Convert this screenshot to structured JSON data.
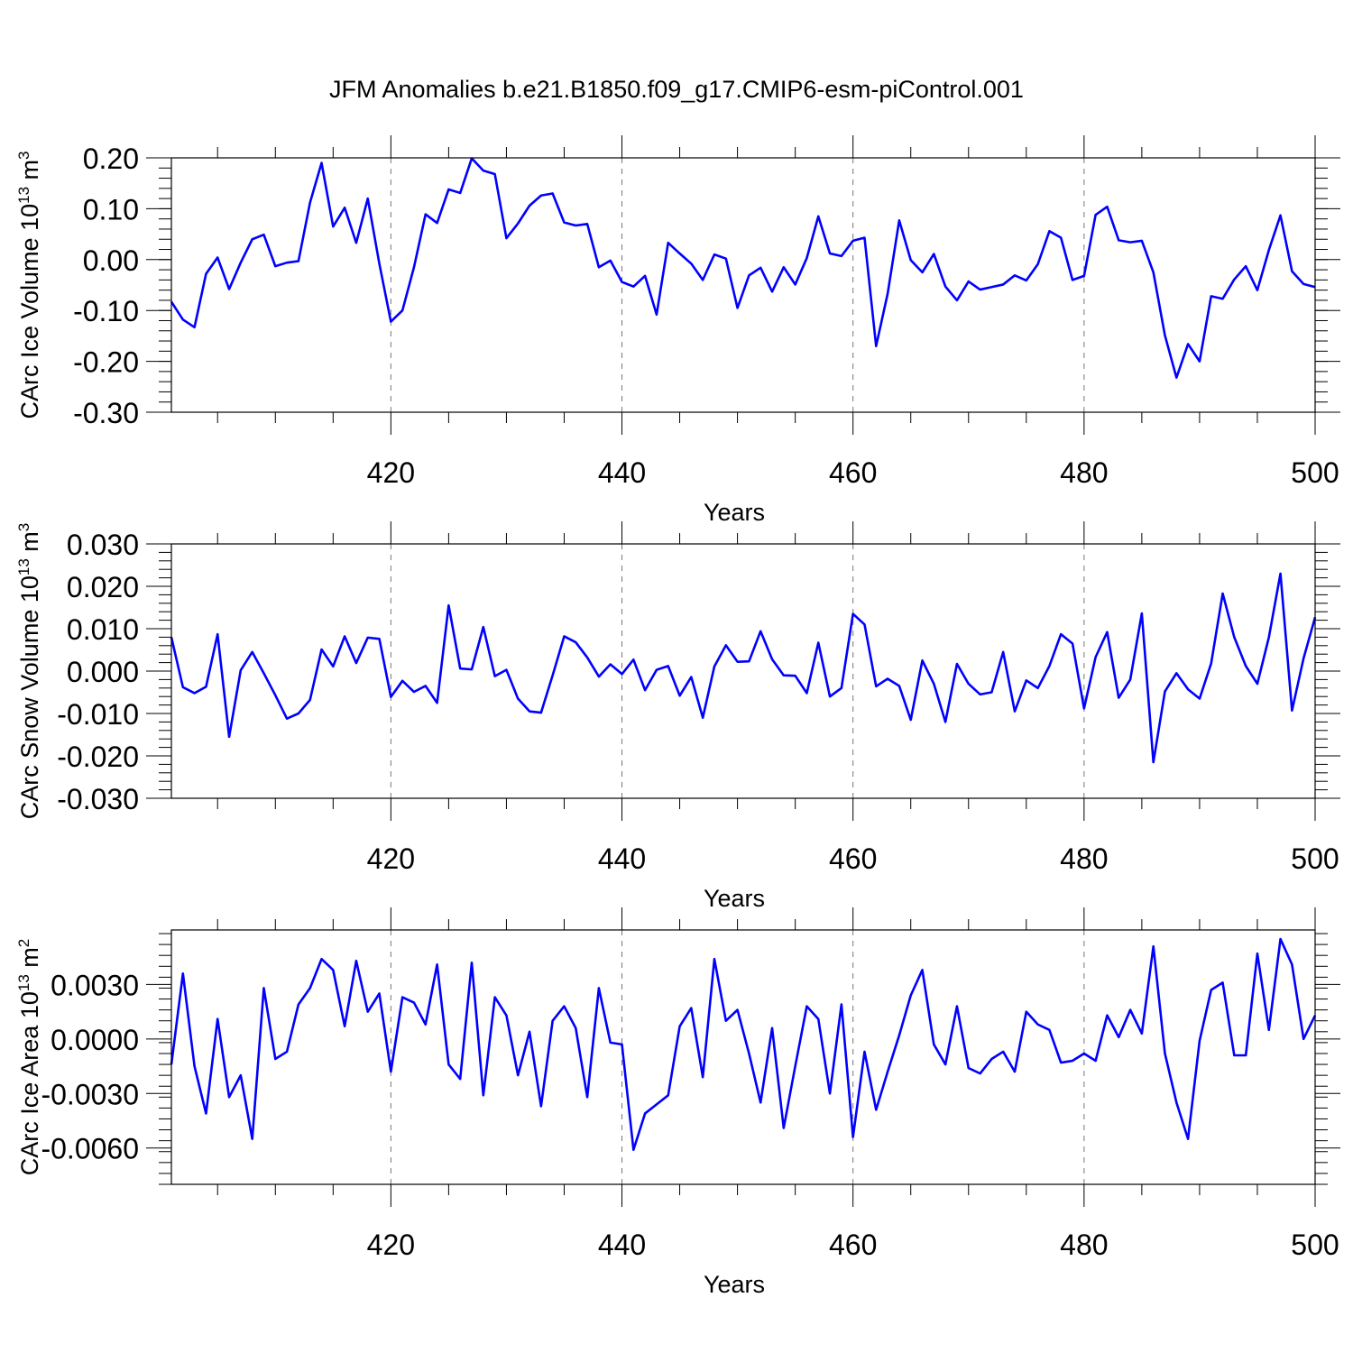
{
  "title": "JFM Anomalies b.e21.B1850.f09_g17.CMIP6-esm-piControl.001",
  "colors": {
    "line": "#0000ff",
    "axis": "#000000",
    "grid": "#777777"
  },
  "chart_data": [
    {
      "type": "line",
      "ylabel": "CArc Ice Volume 10",
      "ylabel_sup": "13",
      "ylabel_unit": " m",
      "ylabel_unit_sup": "3",
      "xlabel": "Years",
      "xlim": [
        401,
        500
      ],
      "ylim": [
        -0.3,
        0.2
      ],
      "xticks": [
        420,
        440,
        460,
        480,
        500
      ],
      "xtick_labels": [
        "420",
        "440",
        "460",
        "480",
        "500"
      ],
      "yticks": [
        0.2,
        0.1,
        0.0,
        -0.1,
        -0.2,
        -0.3
      ],
      "ytick_labels": [
        "0.20",
        "0.10",
        "0.00",
        "-0.10",
        "-0.20",
        "-0.30"
      ],
      "y_minor_step": 0.02,
      "grid_x": [
        420,
        440,
        460,
        480
      ],
      "x": [
        401,
        402,
        403,
        404,
        405,
        406,
        407,
        408,
        409,
        410,
        411,
        412,
        413,
        414,
        415,
        416,
        417,
        418,
        419,
        420,
        421,
        422,
        423,
        424,
        425,
        426,
        427,
        428,
        429,
        430,
        431,
        432,
        433,
        434,
        435,
        436,
        437,
        438,
        439,
        440,
        441,
        442,
        443,
        444,
        445,
        446,
        447,
        448,
        449,
        450,
        451,
        452,
        453,
        454,
        455,
        456,
        457,
        458,
        459,
        460,
        461,
        462,
        463,
        464,
        465,
        466,
        467,
        468,
        469,
        470,
        471,
        472,
        473,
        474,
        475,
        476,
        477,
        478,
        479,
        480,
        481,
        482,
        483,
        484,
        485,
        486,
        487,
        488,
        489,
        490,
        491,
        492,
        493,
        494,
        495,
        496,
        497,
        498,
        499,
        500
      ],
      "values": [
        -0.083,
        -0.118,
        -0.133,
        -0.028,
        0.004,
        -0.058,
        -0.006,
        0.04,
        0.049,
        -0.013,
        -0.006,
        -0.003,
        0.112,
        0.19,
        0.065,
        0.102,
        0.033,
        0.12,
        -0.008,
        -0.122,
        -0.1,
        -0.015,
        0.089,
        0.072,
        0.138,
        0.131,
        0.199,
        0.175,
        0.168,
        0.042,
        0.071,
        0.106,
        0.126,
        0.13,
        0.073,
        0.067,
        0.07,
        -0.015,
        -0.002,
        -0.044,
        -0.053,
        -0.032,
        -0.108,
        0.033,
        0.012,
        -0.008,
        -0.04,
        0.01,
        0.002,
        -0.095,
        -0.031,
        -0.016,
        -0.063,
        -0.015,
        -0.049,
        0.003,
        0.085,
        0.012,
        0.007,
        0.037,
        0.043,
        -0.17,
        -0.067,
        0.077,
        -0.001,
        -0.025,
        0.011,
        -0.053,
        -0.08,
        -0.043,
        -0.059,
        -0.054,
        -0.049,
        -0.031,
        -0.041,
        -0.009,
        0.056,
        0.043,
        -0.04,
        -0.032,
        0.088,
        0.104,
        0.038,
        0.034,
        0.037,
        -0.025,
        -0.149,
        -0.232,
        -0.166,
        -0.2,
        -0.072,
        -0.077,
        -0.039,
        -0.013,
        -0.06,
        0.019,
        0.087,
        -0.023,
        -0.048,
        -0.054
      ]
    },
    {
      "type": "line",
      "ylabel": "CArc Snow Volume 10",
      "ylabel_sup": "13",
      "ylabel_unit": " m",
      "ylabel_unit_sup": "3",
      "xlabel": "Years",
      "xlim": [
        401,
        500
      ],
      "ylim": [
        -0.03,
        0.03
      ],
      "xticks": [
        420,
        440,
        460,
        480,
        500
      ],
      "xtick_labels": [
        "420",
        "440",
        "460",
        "480",
        "500"
      ],
      "yticks": [
        0.03,
        0.02,
        0.01,
        0.0,
        -0.01,
        -0.02,
        -0.03
      ],
      "ytick_labels": [
        "0.030",
        "0.020",
        "0.010",
        "0.000",
        "-0.010",
        "-0.020",
        "-0.030"
      ],
      "y_minor_step": 0.002,
      "grid_x": [
        420,
        440,
        460,
        480
      ],
      "x": [
        401,
        402,
        403,
        404,
        405,
        406,
        407,
        408,
        409,
        410,
        411,
        412,
        413,
        414,
        415,
        416,
        417,
        418,
        419,
        420,
        421,
        422,
        423,
        424,
        425,
        426,
        427,
        428,
        429,
        430,
        431,
        432,
        433,
        434,
        435,
        436,
        437,
        438,
        439,
        440,
        441,
        442,
        443,
        444,
        445,
        446,
        447,
        448,
        449,
        450,
        451,
        452,
        453,
        454,
        455,
        456,
        457,
        458,
        459,
        460,
        461,
        462,
        463,
        464,
        465,
        466,
        467,
        468,
        469,
        470,
        471,
        472,
        473,
        474,
        475,
        476,
        477,
        478,
        479,
        480,
        481,
        482,
        483,
        484,
        485,
        486,
        487,
        488,
        489,
        490,
        491,
        492,
        493,
        494,
        495,
        496,
        497,
        498,
        499,
        500
      ],
      "values": [
        0.008,
        -0.0038,
        -0.0052,
        -0.0037,
        0.0087,
        -0.0155,
        0.0002,
        0.0045,
        -0.0005,
        -0.0057,
        -0.0112,
        -0.01,
        -0.0068,
        0.0051,
        0.0011,
        0.0082,
        0.0019,
        0.0079,
        0.0076,
        -0.0061,
        -0.0023,
        -0.0049,
        -0.0035,
        -0.0075,
        0.0155,
        0.0006,
        0.0004,
        0.0104,
        -0.0012,
        0.0003,
        -0.0065,
        -0.0095,
        -0.0098,
        -0.001,
        0.0082,
        0.0068,
        0.0032,
        -0.0013,
        0.0016,
        -0.0007,
        0.0027,
        -0.0045,
        0.0003,
        0.0012,
        -0.0058,
        -0.0014,
        -0.011,
        0.0011,
        0.0061,
        0.0022,
        0.0023,
        0.0094,
        0.0028,
        -0.001,
        -0.0011,
        -0.0052,
        0.0067,
        -0.006,
        -0.004,
        0.0135,
        0.011,
        -0.0036,
        -0.0018,
        -0.0035,
        -0.0115,
        0.0025,
        -0.003,
        -0.012,
        0.0017,
        -0.003,
        -0.0055,
        -0.005,
        0.0045,
        -0.0095,
        -0.0022,
        -0.004,
        0.0012,
        0.0087,
        0.0065,
        -0.0088,
        0.0033,
        0.0092,
        -0.0063,
        -0.002,
        0.0136,
        -0.0215,
        -0.0048,
        -0.0005,
        -0.0043,
        -0.0065,
        0.0018,
        0.0183,
        0.008,
        0.0012,
        -0.003,
        0.008,
        0.023,
        -0.0093,
        0.003,
        0.0127
      ]
    },
    {
      "type": "line",
      "ylabel": "CArc Ice Area 10",
      "ylabel_sup": "13",
      "ylabel_unit": " m",
      "ylabel_unit_sup": "2",
      "xlabel": "Years",
      "xlim": [
        401,
        500
      ],
      "ylim": [
        -0.008,
        0.006
      ],
      "xticks": [
        420,
        440,
        460,
        480,
        500
      ],
      "xtick_labels": [
        "420",
        "440",
        "460",
        "480",
        "500"
      ],
      "yticks": [
        0.003,
        0.0,
        -0.003,
        -0.006
      ],
      "ytick_labels": [
        "0.0030",
        "0.0000",
        "-0.0030",
        "-0.0060"
      ],
      "y_minor_step": 0.0006,
      "grid_x": [
        420,
        440,
        460,
        480
      ],
      "x": [
        401,
        402,
        403,
        404,
        405,
        406,
        407,
        408,
        409,
        410,
        411,
        412,
        413,
        414,
        415,
        416,
        417,
        418,
        419,
        420,
        421,
        422,
        423,
        424,
        425,
        426,
        427,
        428,
        429,
        430,
        431,
        432,
        433,
        434,
        435,
        436,
        437,
        438,
        439,
        440,
        441,
        442,
        443,
        444,
        445,
        446,
        447,
        448,
        449,
        450,
        451,
        452,
        453,
        454,
        455,
        456,
        457,
        458,
        459,
        460,
        461,
        462,
        463,
        464,
        465,
        466,
        467,
        468,
        469,
        470,
        471,
        472,
        473,
        474,
        475,
        476,
        477,
        478,
        479,
        480,
        481,
        482,
        483,
        484,
        485,
        486,
        487,
        488,
        489,
        490,
        491,
        492,
        493,
        494,
        495,
        496,
        497,
        498,
        499,
        500
      ],
      "values": [
        -0.0014,
        0.0036,
        -0.0015,
        -0.0041,
        0.0011,
        -0.0032,
        -0.002,
        -0.0055,
        0.0028,
        -0.0011,
        -0.0007,
        0.0019,
        0.0028,
        0.0044,
        0.0038,
        0.0007,
        0.0043,
        0.0015,
        0.0025,
        -0.0018,
        0.0023,
        0.002,
        0.0008,
        0.0041,
        -0.0014,
        -0.0022,
        0.0042,
        -0.0031,
        0.0023,
        0.0013,
        -0.002,
        0.0004,
        -0.0037,
        0.001,
        0.0018,
        0.0006,
        -0.0032,
        0.0028,
        -0.0002,
        -0.0003,
        -0.0061,
        -0.0041,
        -0.0036,
        -0.0031,
        0.0007,
        0.0017,
        -0.0021,
        0.0044,
        0.001,
        0.0016,
        -0.0008,
        -0.0035,
        0.0006,
        -0.0049,
        -0.0015,
        0.0018,
        0.0011,
        -0.003,
        0.0019,
        -0.0054,
        -0.0007,
        -0.0039,
        -0.0018,
        0.0002,
        0.0024,
        0.0038,
        -0.0003,
        -0.0014,
        0.0018,
        -0.0016,
        -0.0019,
        -0.0011,
        -0.0007,
        -0.0018,
        0.0015,
        0.0008,
        0.0005,
        -0.0013,
        -0.0012,
        -0.0008,
        -0.0012,
        0.0013,
        0.0001,
        0.0016,
        0.0003,
        0.0051,
        -0.0008,
        -0.0035,
        -0.0055,
        -0.0001,
        0.0027,
        0.0031,
        -0.0009,
        -0.0009,
        0.0047,
        0.0005,
        0.0055,
        0.0041,
        0.0,
        0.0013
      ]
    }
  ]
}
